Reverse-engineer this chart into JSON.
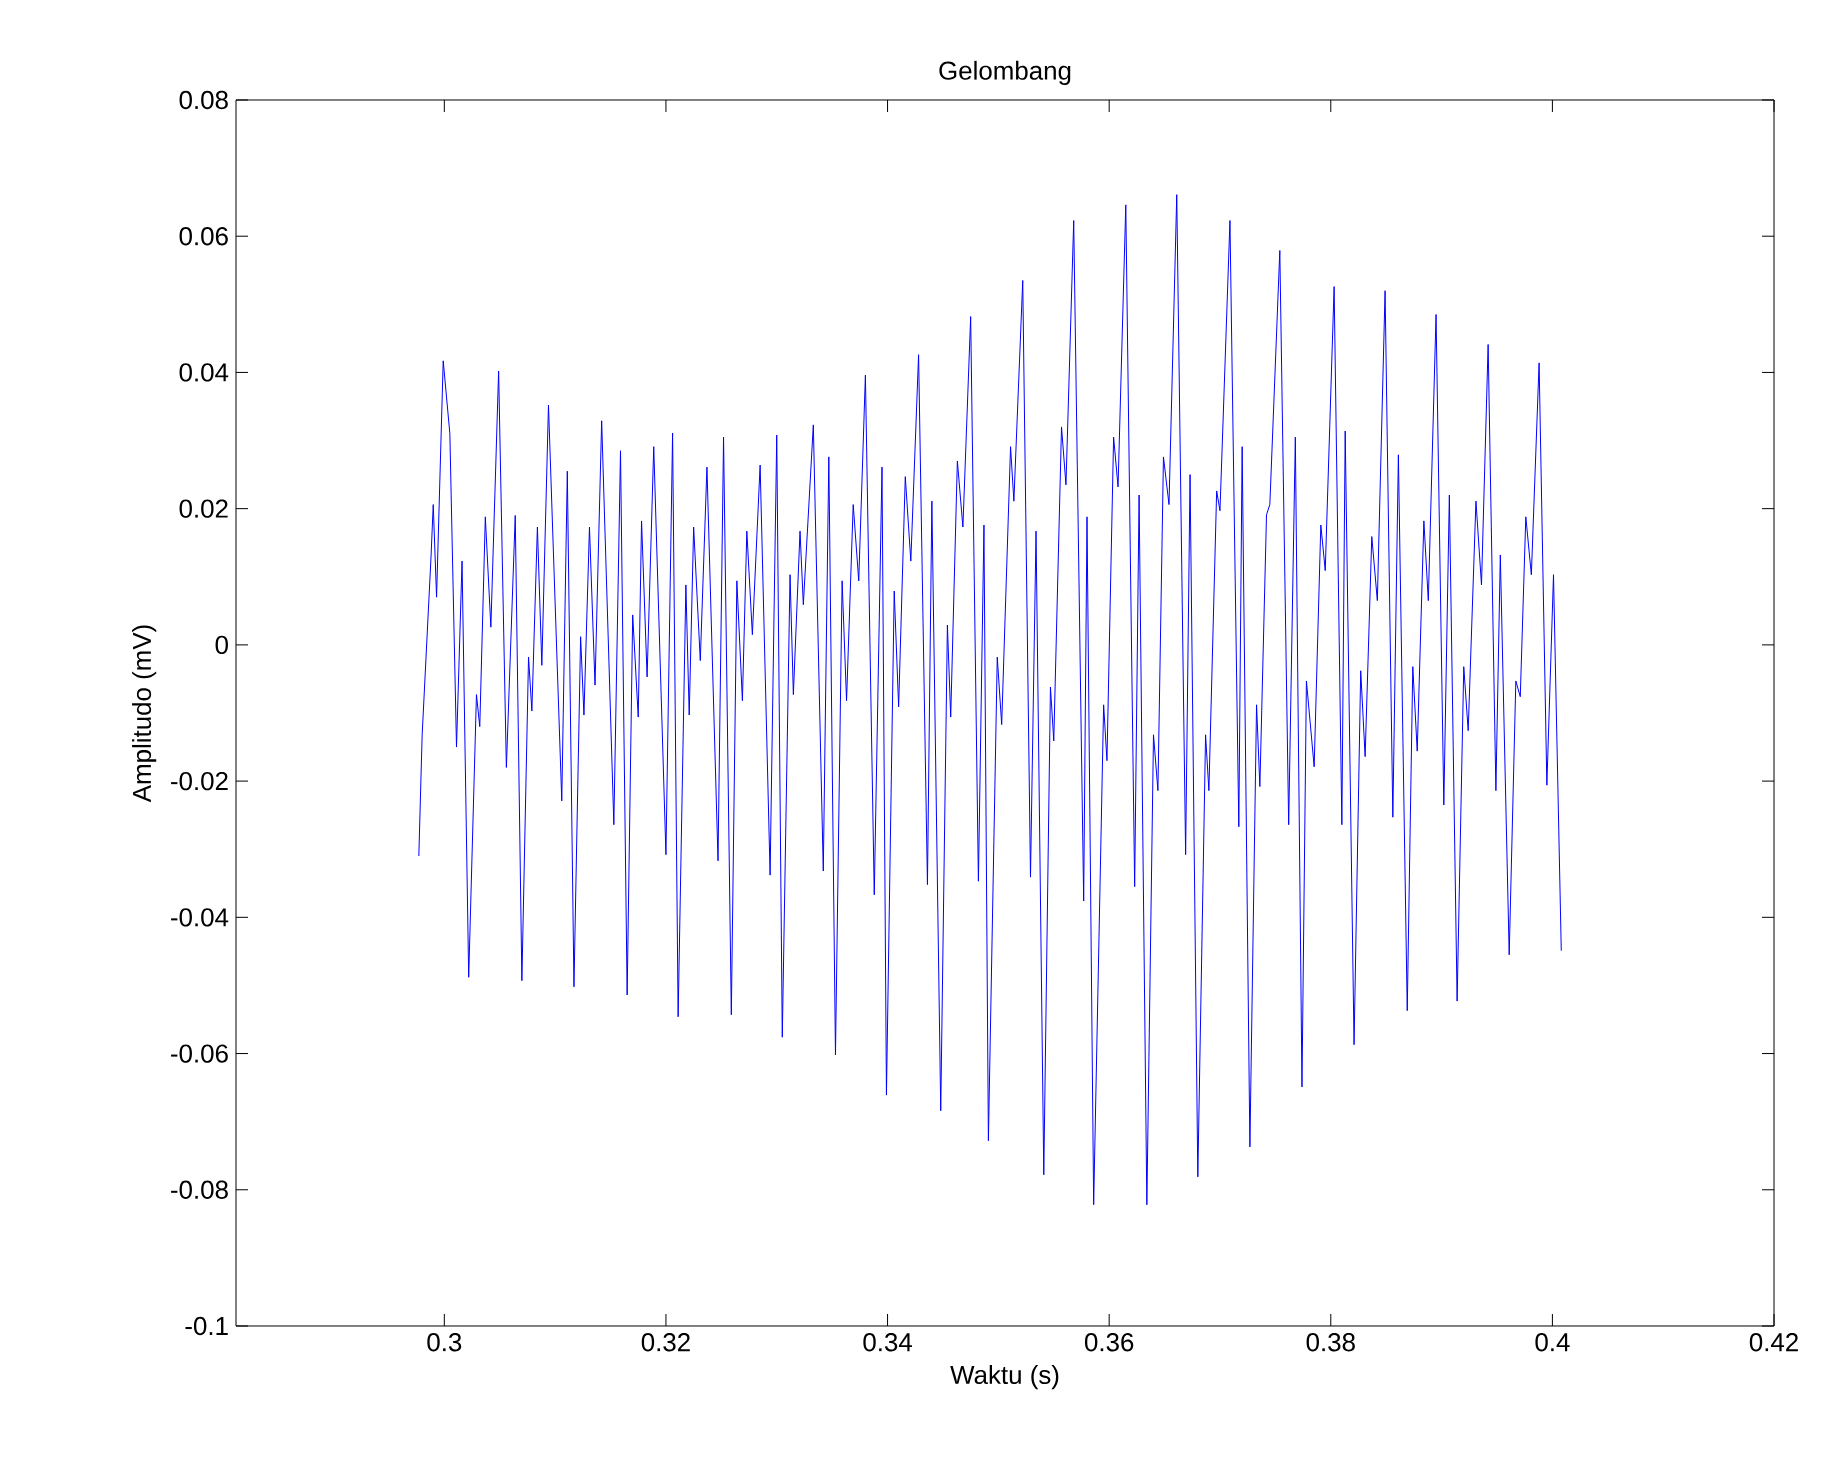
{
  "chart_data": {
    "type": "line",
    "title": "Gelombang",
    "xlabel": "Waktu (s)",
    "ylabel": "Amplitudo (mV)",
    "xlim": [
      0.2812,
      0.42
    ],
    "xticks": [
      0.3,
      0.32,
      0.34,
      0.36,
      0.38,
      0.4,
      0.42
    ],
    "ylim": [
      -0.1,
      0.08
    ],
    "yticks": [
      -0.1,
      -0.08,
      -0.06,
      -0.04,
      -0.02,
      0,
      0.02,
      0.04,
      0.06,
      0.08
    ],
    "marker": "none",
    "line_style": "solid",
    "series": [
      {
        "color": "#0000ff",
        "x": [
          0.2977,
          0.298,
          0.2988,
          0.299,
          0.2993,
          0.2999,
          0.3005,
          0.3011,
          0.3016,
          0.3022,
          0.3029,
          0.3032,
          0.3037,
          0.3042,
          0.3049,
          0.3056,
          0.3064,
          0.307,
          0.3076,
          0.3079,
          0.3084,
          0.3088,
          0.3094,
          0.3106,
          0.3111,
          0.3117,
          0.3123,
          0.3126,
          0.3131,
          0.3136,
          0.3142,
          0.3153,
          0.3159,
          0.3165,
          0.317,
          0.3175,
          0.3178,
          0.3183,
          0.3189,
          0.32,
          0.3206,
          0.3211,
          0.3218,
          0.3221,
          0.3225,
          0.3231,
          0.3237,
          0.3247,
          0.3252,
          0.3259,
          0.3264,
          0.3269,
          0.3273,
          0.3278,
          0.3285,
          0.3294,
          0.33,
          0.3305,
          0.3312,
          0.3315,
          0.3321,
          0.3324,
          0.3333,
          0.3342,
          0.3347,
          0.3353,
          0.3359,
          0.3363,
          0.3369,
          0.3374,
          0.338,
          0.3388,
          0.3395,
          0.3399,
          0.3406,
          0.341,
          0.3416,
          0.3421,
          0.3428,
          0.3436,
          0.344,
          0.3448,
          0.3454,
          0.3457,
          0.3463,
          0.3468,
          0.3475,
          0.3482,
          0.3487,
          0.3491,
          0.3499,
          0.3503,
          0.3511,
          0.3514,
          0.3522,
          0.3529,
          0.3534,
          0.3541,
          0.3547,
          0.355,
          0.3557,
          0.3561,
          0.3568,
          0.3577,
          0.358,
          0.3586,
          0.3595,
          0.3598,
          0.3604,
          0.3608,
          0.3615,
          0.3623,
          0.3627,
          0.3634,
          0.364,
          0.3644,
          0.3649,
          0.3654,
          0.3661,
          0.3669,
          0.3673,
          0.368,
          0.3687,
          0.369,
          0.3697,
          0.37,
          0.3709,
          0.3717,
          0.372,
          0.3727,
          0.3733,
          0.3736,
          0.3742,
          0.3745,
          0.3754,
          0.3762,
          0.3768,
          0.3774,
          0.3778,
          0.3785,
          0.3791,
          0.3795,
          0.3803,
          0.381,
          0.3813,
          0.3821,
          0.3827,
          0.3831,
          0.3837,
          0.3842,
          0.3849,
          0.3856,
          0.3861,
          0.3869,
          0.3874,
          0.3878,
          0.3884,
          0.3888,
          0.3895,
          0.3902,
          0.3907,
          0.3914,
          0.392,
          0.3924,
          0.3931,
          0.3936,
          0.3942,
          0.3949,
          0.3953,
          0.3961,
          0.3967,
          0.3971,
          0.3976,
          0.3981,
          0.3988,
          0.3995,
          0.4001,
          0.4008
        ],
        "values": [
          -0.031,
          -0.0132,
          0.0129,
          0.0206,
          0.007,
          0.0417,
          0.031,
          -0.015,
          0.0123,
          -0.0488,
          -0.0073,
          -0.012,
          0.0188,
          0.0026,
          0.0402,
          -0.018,
          0.019,
          -0.0493,
          -0.0018,
          -0.0097,
          0.0173,
          -0.003,
          0.0352,
          -0.0229,
          0.0255,
          -0.0502,
          0.0012,
          -0.0103,
          0.0173,
          -0.0059,
          0.0329,
          -0.0264,
          0.0285,
          -0.0514,
          0.0044,
          -0.0106,
          0.0182,
          -0.0047,
          0.0291,
          -0.0308,
          0.0311,
          -0.0546,
          0.0088,
          -0.0103,
          0.0173,
          -0.0023,
          0.0261,
          -0.0317,
          0.0305,
          -0.0543,
          0.0094,
          -0.0082,
          0.0167,
          0.0015,
          0.0264,
          -0.0338,
          0.0308,
          -0.0576,
          0.0103,
          -0.0073,
          0.0167,
          0.0059,
          0.0323,
          -0.0332,
          0.0276,
          -0.0602,
          0.0094,
          -0.0082,
          0.0206,
          0.0094,
          0.0396,
          -0.0367,
          0.0261,
          -0.0661,
          0.0079,
          -0.0091,
          0.0247,
          0.0123,
          0.0426,
          -0.0352,
          0.0211,
          -0.0684,
          0.0029,
          -0.0106,
          0.027,
          0.0173,
          0.0482,
          -0.0347,
          0.0176,
          -0.0728,
          -0.0018,
          -0.0117,
          0.0291,
          0.0211,
          0.0535,
          -0.0341,
          0.0167,
          -0.0778,
          -0.0062,
          -0.0141,
          0.032,
          0.0235,
          0.0623,
          -0.0376,
          0.0188,
          -0.0822,
          -0.0088,
          -0.017,
          0.0305,
          0.0232,
          0.0646,
          -0.0355,
          0.022,
          -0.0822,
          -0.0132,
          -0.0214,
          0.0276,
          0.0206,
          0.0661,
          -0.0308,
          0.025,
          -0.0781,
          -0.0132,
          -0.0214,
          0.0226,
          0.0197,
          0.0623,
          -0.0267,
          0.0291,
          -0.0737,
          -0.0088,
          -0.0208,
          0.0191,
          0.0206,
          0.0579,
          -0.0264,
          0.0305,
          -0.0649,
          -0.0053,
          -0.0179,
          0.0176,
          0.0109,
          0.0526,
          -0.0264,
          0.0314,
          -0.0587,
          -0.0038,
          -0.0164,
          0.0159,
          0.0065,
          0.052,
          -0.0253,
          0.0279,
          -0.0537,
          -0.0032,
          -0.0156,
          0.0182,
          0.0065,
          0.0485,
          -0.0235,
          0.022,
          -0.0523,
          -0.0032,
          -0.0126,
          0.0211,
          0.0088,
          0.0441,
          -0.0214,
          0.0132,
          -0.0455,
          -0.0053,
          -0.0076,
          0.0188,
          0.0103,
          0.0414,
          -0.0206,
          0.0103,
          -0.0449
        ]
      }
    ]
  }
}
